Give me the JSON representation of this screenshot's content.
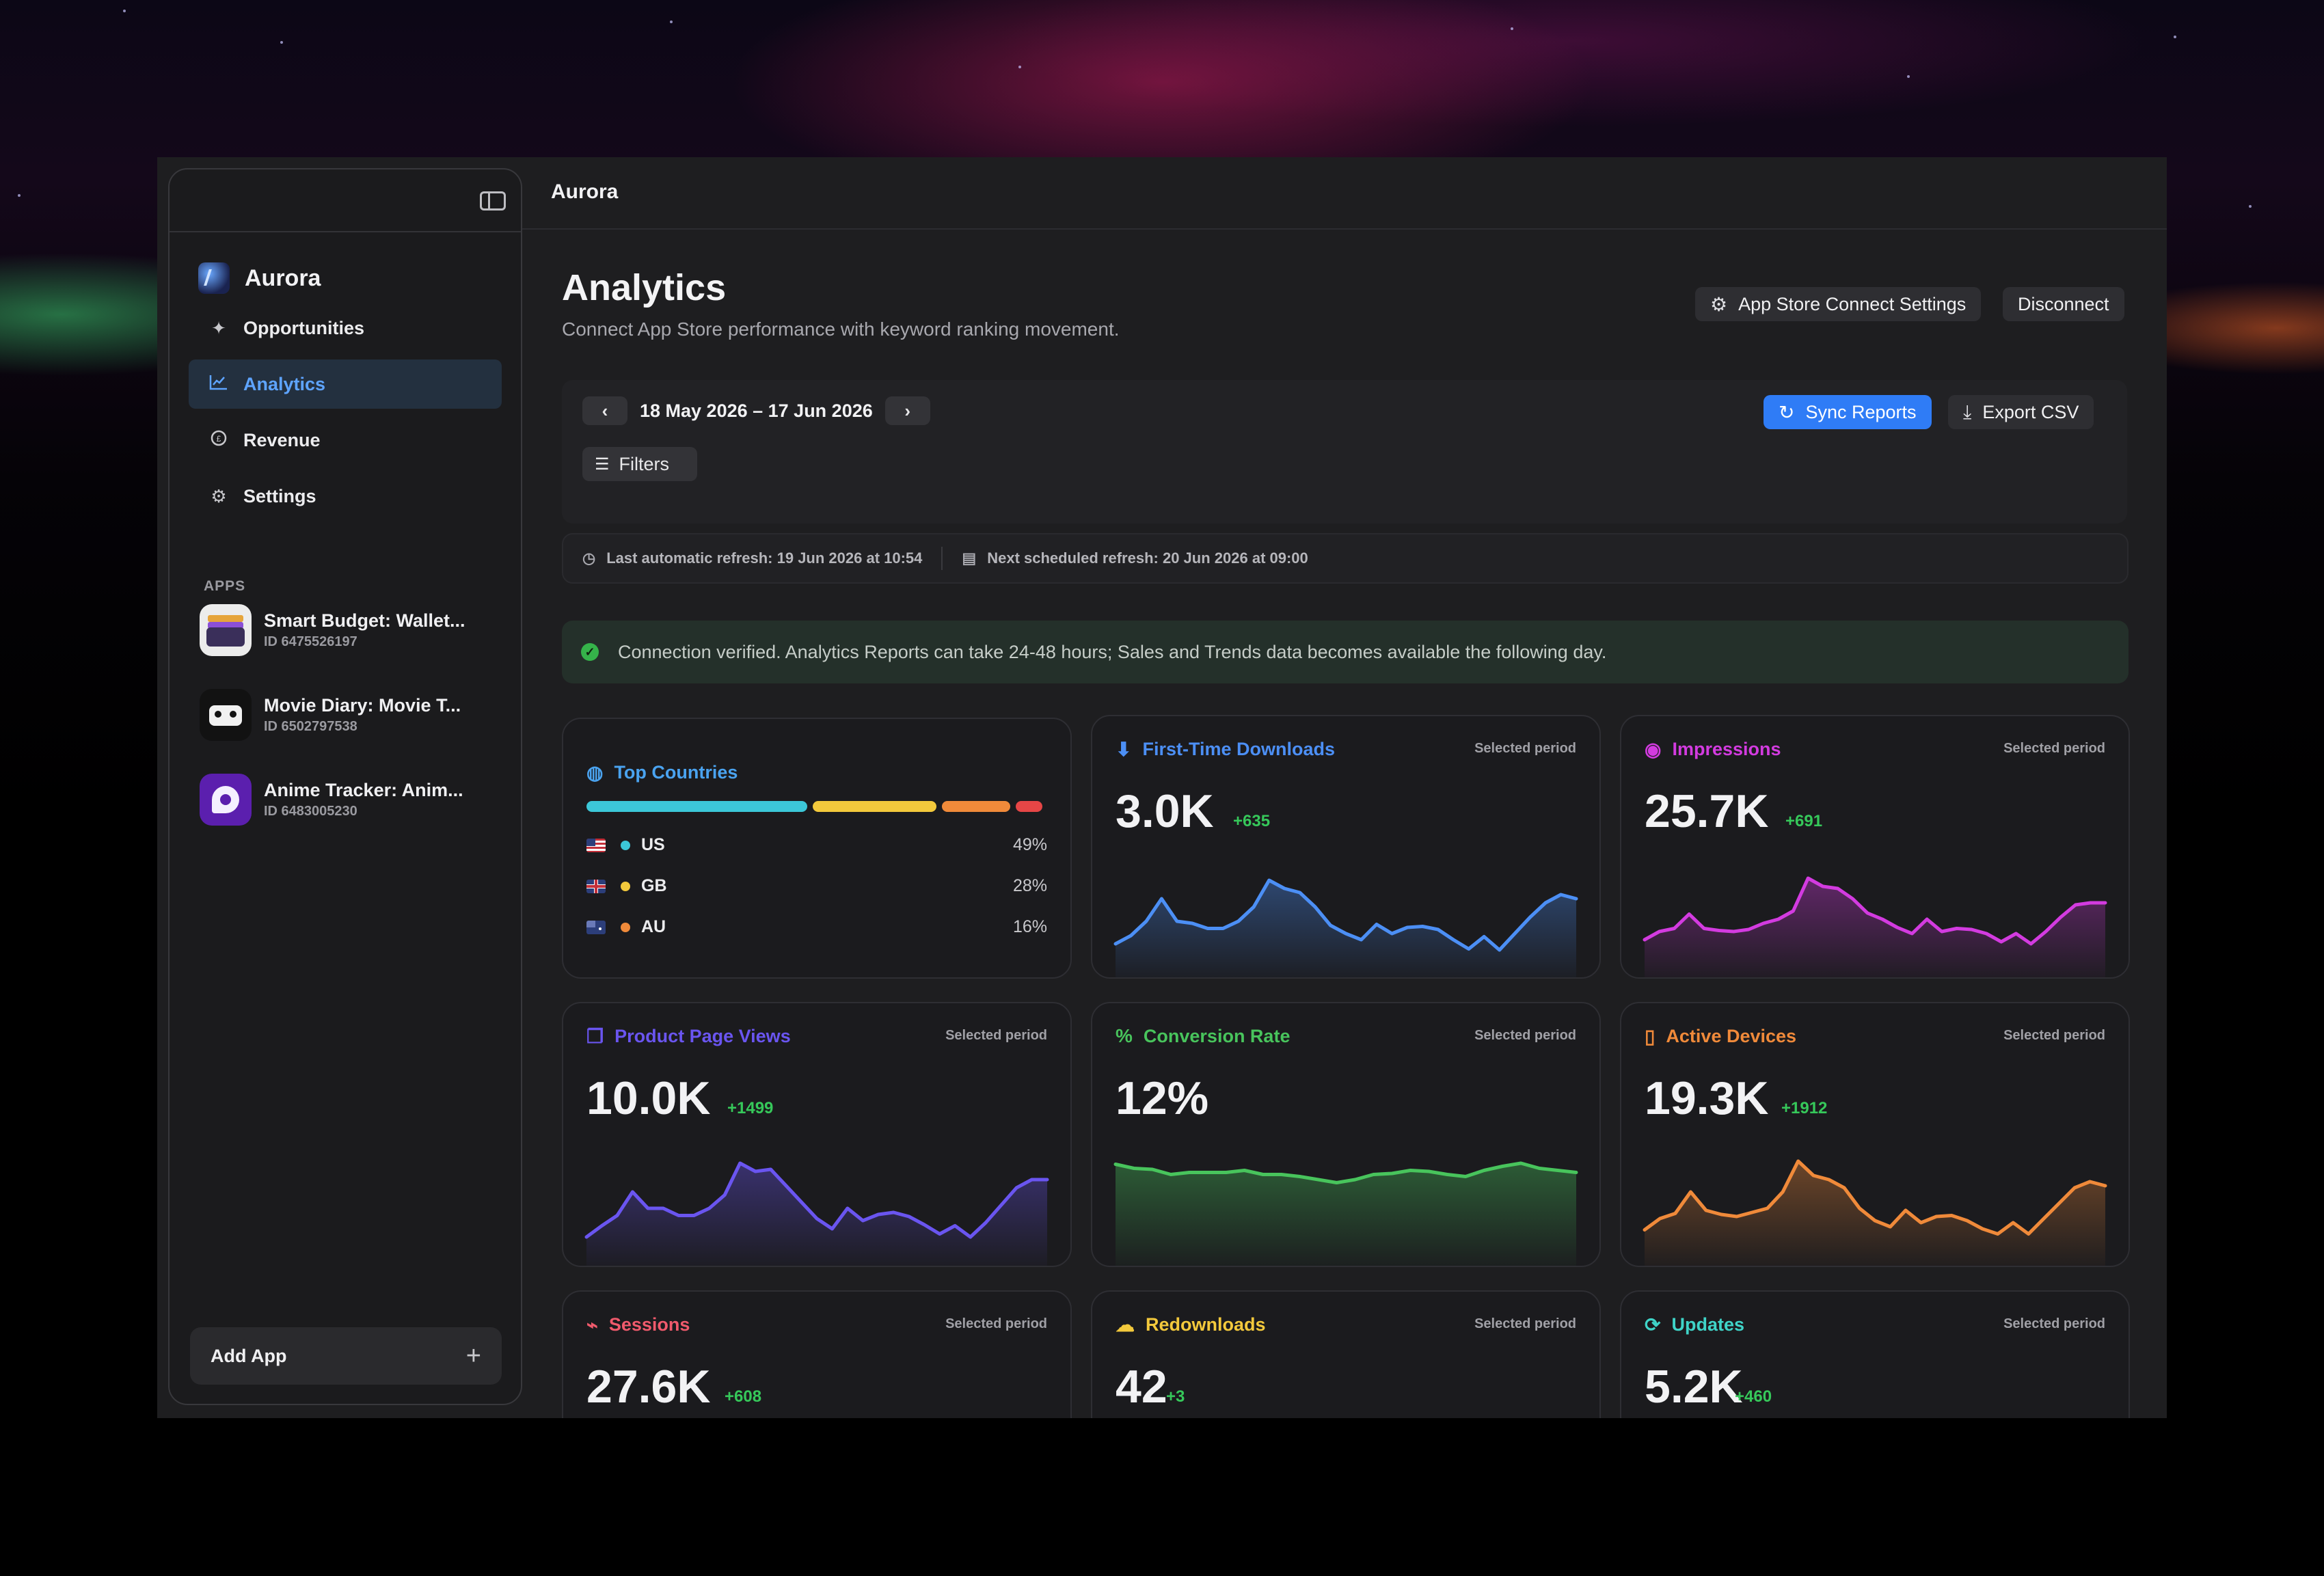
{
  "colors": {
    "accent": "#2f7cf6",
    "downloads": "#4c8ff5",
    "impressions": "#d33be0",
    "page_views": "#6a55f0",
    "conversion": "#48c45c",
    "active_devices": "#f08a3a",
    "sessions": "#f05a6c",
    "redownloads": "#f3c93c",
    "updates": "#3fd4c8"
  },
  "window": {
    "title": "Aurora"
  },
  "sidebar": {
    "toggle_icon": "sidebar-toggle-icon",
    "brand": "Aurora",
    "nav": [
      {
        "label": "Opportunities",
        "icon": "sparkle-icon"
      },
      {
        "label": "Analytics",
        "icon": "chart-line-icon",
        "active": true
      },
      {
        "label": "Revenue",
        "icon": "coin-icon"
      },
      {
        "label": "Settings",
        "icon": "gear-icon"
      }
    ],
    "apps_header": "APPS",
    "apps": [
      {
        "name": "Smart Budget: Wallet...",
        "id": "ID 6475526197"
      },
      {
        "name": "Movie Diary: Movie T...",
        "id": "ID 6502797538"
      },
      {
        "name": "Anime Tracker: Anim...",
        "id": "ID 6483005230"
      }
    ],
    "add_app": "Add App"
  },
  "header": {
    "title": "Analytics",
    "subtitle": "Connect App Store performance with keyword ranking movement.",
    "settings_button": "App Store Connect Settings",
    "disconnect_button": "Disconnect"
  },
  "toolbar": {
    "date_range": "18 May 2026 – 17 Jun 2026",
    "filters": "Filters",
    "sync": "Sync Reports",
    "export": "Export CSV"
  },
  "refresh": {
    "last": "Last automatic refresh: 19 Jun 2026 at 10:54",
    "next": "Next scheduled refresh: 20 Jun 2026 at 09:00"
  },
  "status": {
    "message": "Connection verified. Analytics Reports can take 24-48 hours; Sales and Trends data becomes available the following day."
  },
  "top_countries": {
    "title": "Top Countries",
    "rows": [
      {
        "code": "US",
        "pct": "49%",
        "value": 49,
        "color": "#3cc7d8"
      },
      {
        "code": "GB",
        "pct": "28%",
        "value": 28,
        "color": "#f3c93c"
      },
      {
        "code": "AU",
        "pct": "16%",
        "value": 16,
        "color": "#f08a3a"
      }
    ],
    "other_value": 7,
    "other_color": "#e64646"
  },
  "metrics": [
    {
      "key": "downloads",
      "title": "First-Time Downloads",
      "period": "Selected period",
      "value": "3.0K",
      "delta": "+635",
      "series": [
        18,
        26,
        40,
        62,
        40,
        38,
        33,
        33,
        40,
        54,
        80,
        72,
        68,
        54,
        36,
        28,
        22,
        37,
        28,
        34,
        35,
        32,
        22,
        13,
        25,
        12,
        28,
        44,
        58,
        66,
        62
      ]
    },
    {
      "key": "impressions",
      "title": "Impressions",
      "period": "Selected period",
      "value": "25.7K",
      "delta": "+691",
      "series": [
        22,
        30,
        33,
        47,
        33,
        31,
        30,
        32,
        38,
        42,
        50,
        82,
        74,
        72,
        62,
        48,
        42,
        34,
        28,
        42,
        30,
        33,
        32,
        28,
        20,
        28,
        18,
        30,
        44,
        56,
        58,
        58
      ]
    },
    {
      "key": "page_views",
      "title": "Product Page Views",
      "period": "Selected period",
      "value": "10.0K",
      "delta": "+1499",
      "series": [
        12,
        23,
        33,
        56,
        40,
        40,
        33,
        33,
        40,
        53,
        84,
        76,
        78,
        62,
        46,
        30,
        20,
        40,
        28,
        34,
        36,
        32,
        24,
        15,
        23,
        12,
        26,
        43,
        60,
        68,
        68
      ]
    },
    {
      "key": "conversion",
      "title": "Conversion Rate",
      "period": "Selected period",
      "value": "12%",
      "delta": "",
      "series": [
        83,
        79,
        78,
        73,
        75,
        75,
        75,
        77,
        73,
        73,
        71,
        68,
        65,
        68,
        73,
        74,
        77,
        76,
        73,
        71,
        77,
        81,
        84,
        79,
        77,
        75
      ]
    },
    {
      "key": "active_devices",
      "title": "Active Devices",
      "period": "Selected period",
      "value": "19.3K",
      "delta": "+1912",
      "series": [
        19,
        30,
        35,
        56,
        38,
        34,
        32,
        36,
        40,
        56,
        86,
        72,
        68,
        60,
        40,
        28,
        22,
        38,
        26,
        32,
        33,
        28,
        20,
        15,
        26,
        15,
        30,
        45,
        60,
        66,
        62
      ]
    },
    {
      "key": "sessions",
      "title": "Sessions",
      "period": "Selected period",
      "value": "27.6K",
      "delta": "+608",
      "series": []
    },
    {
      "key": "redownloads",
      "title": "Redownloads",
      "period": "Selected period",
      "value": "42",
      "delta": "+3",
      "series": []
    },
    {
      "key": "updates",
      "title": "Updates",
      "period": "Selected period",
      "value": "5.2K",
      "delta": "+460",
      "series": []
    }
  ]
}
